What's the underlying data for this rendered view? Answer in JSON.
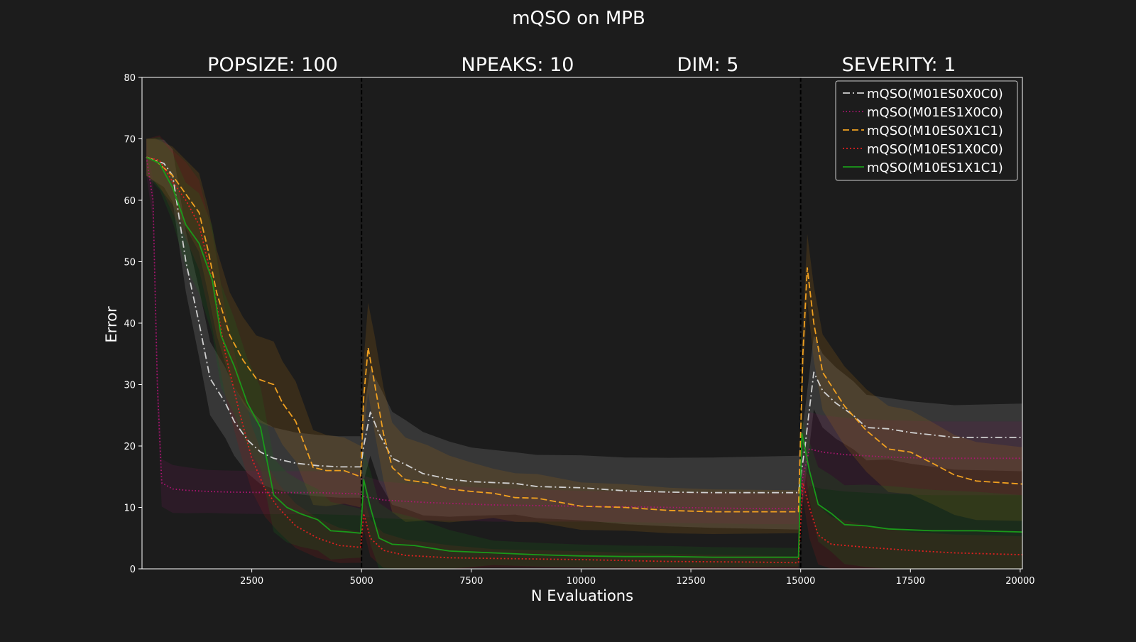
{
  "chart_data": {
    "type": "line",
    "title": "mQSO on MPB",
    "subtitles": [
      "POPSIZE: 100",
      "NPEAKS: 10",
      "DIM: 5",
      "SEVERITY: 1"
    ],
    "xlabel": "N Evaluations",
    "ylabel": "Error",
    "xlim": [
      0,
      20050
    ],
    "ylim": [
      0,
      80
    ],
    "xticks": [
      2500,
      5000,
      7500,
      10000,
      12500,
      15000,
      17500,
      20000
    ],
    "yticks": [
      0,
      10,
      20,
      30,
      40,
      50,
      60,
      70,
      80
    ],
    "change_points": [
      5000,
      15000
    ],
    "grid": false,
    "legend_position": "top-right",
    "series": [
      {
        "name": "mQSO(M01ES0X0C0)",
        "color": "#d0d0d0",
        "dash": "10 4 2 4",
        "band_color": "#9a9a9a",
        "points": [
          [
            100,
            67
          ],
          [
            500,
            66
          ],
          [
            700,
            64
          ],
          [
            1000,
            50
          ],
          [
            1300,
            40
          ],
          [
            1550,
            31
          ],
          [
            1900,
            27
          ],
          [
            2100,
            24
          ],
          [
            2400,
            21
          ],
          [
            2700,
            19
          ],
          [
            3000,
            18
          ],
          [
            3500,
            17.2
          ],
          [
            4000,
            16.8
          ],
          [
            4500,
            16.6
          ],
          [
            4980,
            16.6
          ],
          [
            5050,
            20
          ],
          [
            5200,
            25.5
          ],
          [
            5400,
            22
          ],
          [
            5700,
            18
          ],
          [
            6000,
            17
          ],
          [
            6400,
            15.5
          ],
          [
            7000,
            14.6
          ],
          [
            7500,
            14.2
          ],
          [
            8500,
            13.9
          ],
          [
            9000,
            13.4
          ],
          [
            10000,
            13.2
          ],
          [
            11000,
            12.7
          ],
          [
            12000,
            12.5
          ],
          [
            13000,
            12.4
          ],
          [
            14000,
            12.4
          ],
          [
            14950,
            12.4
          ],
          [
            15100,
            20
          ],
          [
            15300,
            32
          ],
          [
            15500,
            29
          ],
          [
            15800,
            27
          ],
          [
            16200,
            25
          ],
          [
            16500,
            23
          ],
          [
            17000,
            22.8
          ],
          [
            17500,
            22.2
          ],
          [
            18000,
            21.8
          ],
          [
            18500,
            21.4
          ],
          [
            19000,
            21.4
          ],
          [
            20050,
            21.4
          ]
        ],
        "band": [
          [
            100,
            3
          ],
          [
            1500,
            6
          ],
          [
            3000,
            5
          ],
          [
            4980,
            5
          ],
          [
            5300,
            8
          ],
          [
            8000,
            5
          ],
          [
            14950,
            6
          ],
          [
            15500,
            6
          ],
          [
            17000,
            5
          ],
          [
            20050,
            5.5
          ]
        ]
      },
      {
        "name": "mQSO(M01ES1X0C0)",
        "color": "#b01474",
        "dash": "1.5 3",
        "band_color": "#6a1a50",
        "points": [
          [
            100,
            67
          ],
          [
            250,
            60
          ],
          [
            350,
            30
          ],
          [
            450,
            14
          ],
          [
            700,
            13
          ],
          [
            1000,
            12.8
          ],
          [
            1500,
            12.6
          ],
          [
            2000,
            12.5
          ],
          [
            3000,
            12.4
          ],
          [
            4000,
            12.4
          ],
          [
            4980,
            12.2
          ],
          [
            5050,
            11.8
          ],
          [
            5500,
            11.2
          ],
          [
            6500,
            10.8
          ],
          [
            8000,
            10.4
          ],
          [
            10000,
            10.2
          ],
          [
            12000,
            10
          ],
          [
            14000,
            9.8
          ],
          [
            14950,
            9.8
          ],
          [
            15050,
            15
          ],
          [
            15200,
            19.5
          ],
          [
            15500,
            19
          ],
          [
            16000,
            18.6
          ],
          [
            17000,
            18.2
          ],
          [
            18000,
            18
          ],
          [
            19000,
            18
          ],
          [
            20050,
            18
          ]
        ],
        "band": [
          [
            100,
            3
          ],
          [
            500,
            4
          ],
          [
            1500,
            3.5
          ],
          [
            4980,
            3.5
          ],
          [
            5200,
            3
          ],
          [
            10000,
            2.5
          ],
          [
            14950,
            2.5
          ],
          [
            15200,
            6
          ],
          [
            17000,
            6
          ],
          [
            20050,
            6
          ]
        ]
      },
      {
        "name": "mQSO(M10ES0X1C1)",
        "color": "#f0a020",
        "dash": "9 4",
        "band_color": "#a06a18",
        "points": [
          [
            100,
            67
          ],
          [
            300,
            66.5
          ],
          [
            700,
            64
          ],
          [
            1000,
            61
          ],
          [
            1300,
            58
          ],
          [
            1500,
            52
          ],
          [
            1700,
            45
          ],
          [
            2000,
            38
          ],
          [
            2300,
            34
          ],
          [
            2600,
            31
          ],
          [
            3000,
            30
          ],
          [
            3200,
            27
          ],
          [
            3500,
            24
          ],
          [
            3900,
            16.5
          ],
          [
            4200,
            16
          ],
          [
            4600,
            16
          ],
          [
            4980,
            15
          ],
          [
            5050,
            28
          ],
          [
            5150,
            36
          ],
          [
            5300,
            30
          ],
          [
            5500,
            22
          ],
          [
            5700,
            16.5
          ],
          [
            6000,
            14.5
          ],
          [
            6500,
            14
          ],
          [
            7000,
            13
          ],
          [
            7500,
            12.6
          ],
          [
            8000,
            12.3
          ],
          [
            8500,
            11.6
          ],
          [
            9000,
            11.5
          ],
          [
            10000,
            10.2
          ],
          [
            11000,
            10
          ],
          [
            12000,
            9.5
          ],
          [
            13000,
            9.3
          ],
          [
            14000,
            9.3
          ],
          [
            14950,
            9.3
          ],
          [
            15050,
            35
          ],
          [
            15150,
            49
          ],
          [
            15300,
            40
          ],
          [
            15500,
            32
          ],
          [
            16000,
            26.5
          ],
          [
            16500,
            22.5
          ],
          [
            17000,
            19.5
          ],
          [
            17500,
            19
          ],
          [
            18000,
            17.2
          ],
          [
            18500,
            15.3
          ],
          [
            19000,
            14.3
          ],
          [
            20050,
            13.8
          ]
        ],
        "band": [
          [
            100,
            3
          ],
          [
            1500,
            7
          ],
          [
            3000,
            7
          ],
          [
            4980,
            5
          ],
          [
            5200,
            8
          ],
          [
            8000,
            4
          ],
          [
            14950,
            3.5
          ],
          [
            15200,
            6
          ],
          [
            17000,
            7
          ],
          [
            20050,
            6
          ]
        ]
      },
      {
        "name": "mQSO(M10ES1X0C0)",
        "color": "#e02020",
        "dash": "2 3",
        "band_color": "#8a1a1a",
        "points": [
          [
            100,
            67
          ],
          [
            400,
            66.5
          ],
          [
            700,
            63
          ],
          [
            1000,
            60
          ],
          [
            1300,
            56
          ],
          [
            1600,
            47
          ],
          [
            1900,
            35
          ],
          [
            2200,
            26
          ],
          [
            2500,
            18
          ],
          [
            2800,
            13
          ],
          [
            3100,
            10
          ],
          [
            3500,
            7
          ],
          [
            4000,
            5
          ],
          [
            4500,
            3.8
          ],
          [
            4980,
            3.5
          ],
          [
            5050,
            9
          ],
          [
            5200,
            5
          ],
          [
            5500,
            3
          ],
          [
            6000,
            2.2
          ],
          [
            7000,
            1.8
          ],
          [
            8000,
            1.7
          ],
          [
            10000,
            1.5
          ],
          [
            12000,
            1.2
          ],
          [
            14000,
            1.1
          ],
          [
            14950,
            1
          ],
          [
            15050,
            14
          ],
          [
            15200,
            10
          ],
          [
            15400,
            5.5
          ],
          [
            15700,
            4
          ],
          [
            16500,
            3.5
          ],
          [
            17500,
            3
          ],
          [
            18500,
            2.6
          ],
          [
            20050,
            2.3
          ]
        ],
        "band": [
          [
            100,
            3
          ],
          [
            1500,
            8
          ],
          [
            3000,
            4
          ],
          [
            4980,
            2.5
          ],
          [
            5200,
            3
          ],
          [
            8000,
            1.5
          ],
          [
            14950,
            1
          ],
          [
            15200,
            5
          ],
          [
            17000,
            3
          ],
          [
            20050,
            3
          ]
        ]
      },
      {
        "name": "mQSO(M10ES1X1C1)",
        "color": "#1a9a1a",
        "dash": "",
        "band_color": "#1a6a1a",
        "points": [
          [
            100,
            67
          ],
          [
            400,
            66
          ],
          [
            700,
            62
          ],
          [
            1000,
            56
          ],
          [
            1300,
            53
          ],
          [
            1600,
            47
          ],
          [
            1800,
            38
          ],
          [
            2100,
            33
          ],
          [
            2400,
            27
          ],
          [
            2700,
            23
          ],
          [
            3000,
            12
          ],
          [
            3300,
            10
          ],
          [
            3600,
            9
          ],
          [
            4000,
            8
          ],
          [
            4300,
            6.2
          ],
          [
            4700,
            6
          ],
          [
            4980,
            5.8
          ],
          [
            5050,
            14.5
          ],
          [
            5200,
            10
          ],
          [
            5400,
            5
          ],
          [
            5700,
            4
          ],
          [
            6200,
            3.8
          ],
          [
            7000,
            2.9
          ],
          [
            8000,
            2.6
          ],
          [
            9000,
            2.3
          ],
          [
            10000,
            2.1
          ],
          [
            11000,
            2
          ],
          [
            12000,
            2
          ],
          [
            13000,
            1.9
          ],
          [
            14950,
            1.9
          ],
          [
            15030,
            22
          ],
          [
            15200,
            16
          ],
          [
            15400,
            10.5
          ],
          [
            15700,
            9
          ],
          [
            16000,
            7.2
          ],
          [
            16500,
            7
          ],
          [
            17000,
            6.5
          ],
          [
            18000,
            6.2
          ],
          [
            19000,
            6.2
          ],
          [
            20050,
            6
          ]
        ],
        "band": [
          [
            100,
            3
          ],
          [
            1500,
            9
          ],
          [
            3000,
            6
          ],
          [
            4980,
            4
          ],
          [
            5200,
            6
          ],
          [
            8000,
            2
          ],
          [
            14950,
            1.5
          ],
          [
            15300,
            6
          ],
          [
            17000,
            7
          ],
          [
            20050,
            6
          ]
        ]
      }
    ]
  }
}
